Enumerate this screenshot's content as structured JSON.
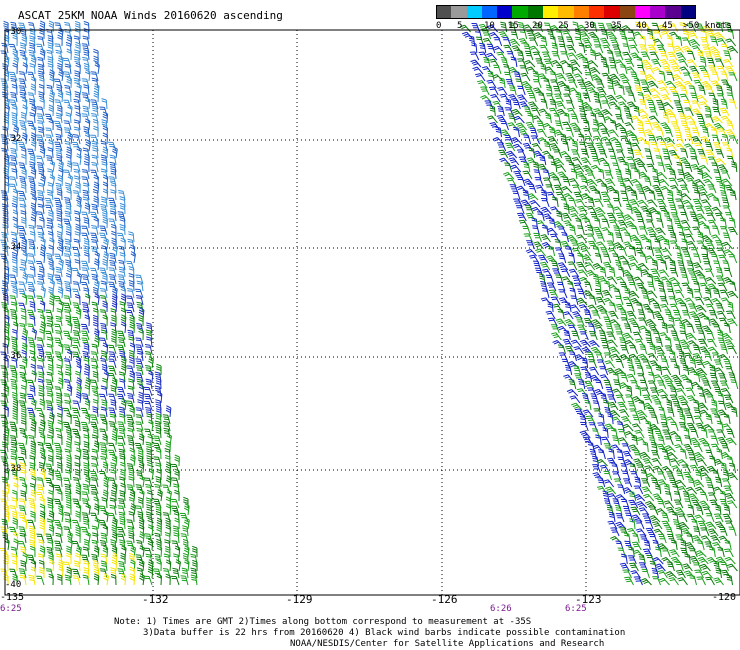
{
  "title": "ASCAT 25KM NOAA Winds 20160620 ascending",
  "colorbar": {
    "labels": [
      "0",
      "5",
      "10",
      "15",
      "20",
      "25",
      "30",
      "35",
      "40",
      "45",
      ">50 knots"
    ],
    "colors": [
      "#505050",
      "#9a9a9a",
      "#00ccff",
      "#0066ff",
      "#0000cc",
      "#00aa00",
      "#007700",
      "#ffee00",
      "#ffbb00",
      "#ff8000",
      "#ff3000",
      "#dd0000",
      "#8b4513",
      "#ff00ff",
      "#aa00cc",
      "#5a0090",
      "#000080"
    ]
  },
  "axes": {
    "lon_labels": [
      "-135",
      "-132",
      "-129",
      "-126",
      "-123",
      "-120"
    ],
    "lat_labels": [
      "-30",
      "-32",
      "-34",
      "-36",
      "-38",
      "-40"
    ]
  },
  "times": [
    "6:25",
    "6:26",
    "6:25"
  ],
  "notes": [
    "Note: 1) Times are GMT 2)Times along bottom correspond to measurement at -35S",
    "3)Data buffer is 22 hrs from 20160620 4) Black wind barbs indicate possible contamination",
    "NOAA/NESDIS/Center for Satellite Applications and Research"
  ]
}
